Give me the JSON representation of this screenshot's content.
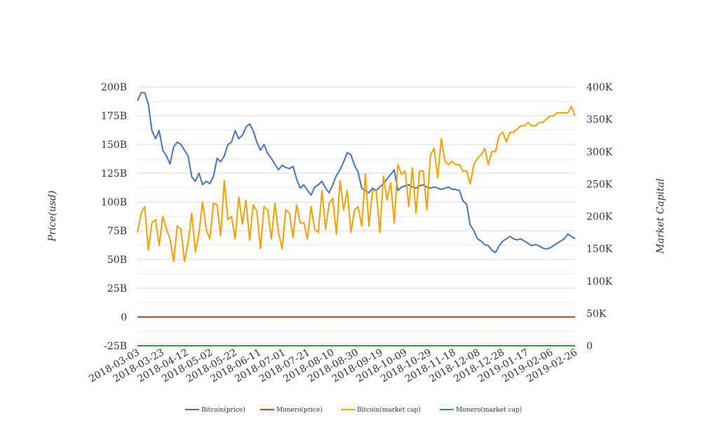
{
  "chart_data": {
    "type": "line",
    "x_labels": [
      "2018-03-03",
      "2018-03-23",
      "2018-04-12",
      "2018-05-02",
      "2018-05-22",
      "2018-06-11",
      "2018-07-01",
      "2018-07-21",
      "2018-08-10",
      "2018-08-30",
      "2018-09-19",
      "2018-10-09",
      "2018-10-29",
      "2018-11-18",
      "2018-12-08",
      "2018-12-28",
      "2019-01-17",
      "2019-02-06",
      "2019-02-26"
    ],
    "left_axis": {
      "label": "Price(usd)",
      "ticks": [
        "-25B",
        "0",
        "25B",
        "50B",
        "75B",
        "100B",
        "125B",
        "150B",
        "175B",
        "200B"
      ],
      "range": [
        -25,
        200
      ]
    },
    "right_axis": {
      "label": "Market Capital",
      "ticks": [
        "0",
        "50K",
        "100K",
        "150K",
        "200K",
        "250K",
        "300K",
        "350K",
        "400K"
      ],
      "range": [
        0,
        400
      ]
    },
    "grid": true,
    "legend_position": "bottom",
    "series": [
      {
        "name": "Bitcoin(price)",
        "color": "#4472c4",
        "axis": "left",
        "values": [
          188,
          195,
          195,
          185,
          162,
          155,
          162,
          145,
          140,
          133,
          148,
          152,
          150,
          145,
          140,
          122,
          118,
          125,
          115,
          118,
          116,
          122,
          138,
          135,
          140,
          150,
          152,
          162,
          155,
          158,
          165,
          168,
          162,
          152,
          145,
          150,
          142,
          138,
          133,
          128,
          132,
          130,
          129,
          131,
          120,
          112,
          115,
          110,
          106,
          113,
          115,
          118,
          112,
          108,
          115,
          123,
          128,
          135,
          143,
          141,
          132,
          126,
          112,
          110,
          108,
          112,
          110,
          113,
          116,
          120,
          124,
          128,
          110,
          113,
          114,
          115,
          113,
          112,
          114,
          115,
          113,
          112,
          113,
          112,
          111,
          112,
          113,
          111,
          111,
          110,
          101,
          98,
          80,
          75,
          68,
          66,
          63,
          62,
          58,
          56,
          62,
          66,
          68,
          70,
          68,
          67,
          68,
          66,
          64,
          62,
          63,
          62,
          60,
          59,
          60,
          62,
          64,
          66,
          68,
          72,
          70,
          68
        ]
      },
      {
        "name": "Monero(price)",
        "color": "#e0411a",
        "axis": "left",
        "value": 0
      },
      {
        "name": "Bitcoin(market cap)",
        "color": "#f5a000",
        "axis": "right",
        "values": [
          175,
          205,
          215,
          148,
          190,
          195,
          155,
          200,
          180,
          165,
          130,
          185,
          180,
          130,
          160,
          205,
          145,
          175,
          222,
          180,
          165,
          220,
          218,
          170,
          255,
          195,
          200,
          165,
          230,
          188,
          225,
          163,
          218,
          208,
          150,
          215,
          210,
          165,
          220,
          175,
          150,
          210,
          205,
          167,
          218,
          190,
          190,
          165,
          215,
          180,
          175,
          240,
          180,
          220,
          228,
          172,
          255,
          210,
          240,
          175,
          210,
          215,
          185,
          265,
          185,
          240,
          240,
          175,
          262,
          225,
          252,
          190,
          280,
          265,
          270,
          215,
          275,
          205,
          270,
          270,
          210,
          295,
          305,
          260,
          320,
          285,
          280,
          285,
          280,
          280,
          270,
          270,
          250,
          280,
          290,
          295,
          305,
          280,
          300,
          300,
          325,
          330,
          315,
          330,
          330,
          335,
          340,
          340,
          345,
          340,
          340,
          345,
          345,
          350,
          355,
          355,
          360,
          360,
          360,
          360,
          370,
          355
        ]
      },
      {
        "name": "Monero(market cap)",
        "color": "#2ca02c",
        "axis": "right",
        "value": 0
      }
    ]
  }
}
